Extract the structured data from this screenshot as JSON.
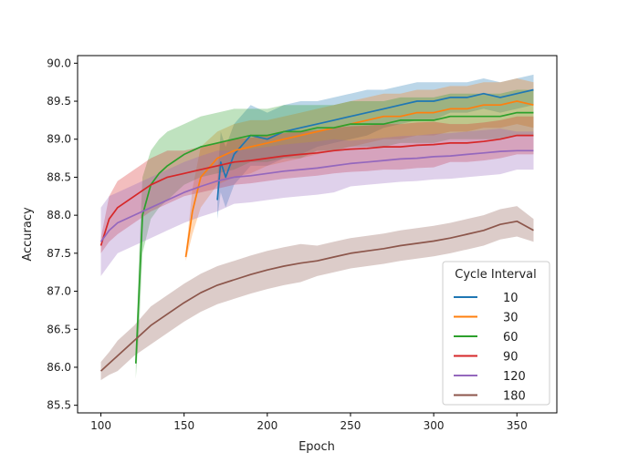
{
  "chart_data": {
    "type": "line",
    "title": "",
    "xlabel": "Epoch",
    "ylabel": "Accuracy",
    "xlim": [
      86,
      374
    ],
    "ylim": [
      85.4,
      90.1
    ],
    "xticks": [
      100,
      150,
      200,
      250,
      300,
      350
    ],
    "yticks": [
      85.5,
      86.0,
      86.5,
      87.0,
      87.5,
      88.0,
      88.5,
      89.0,
      89.5,
      90.0
    ],
    "grid": false,
    "legend": {
      "title": "Cycle Interval",
      "placement": "lower-right"
    },
    "series": [
      {
        "name": "10",
        "color": "#1f77b4",
        "x": [
          170,
          172,
          175,
          180,
          190,
          200,
          210,
          220,
          230,
          240,
          250,
          260,
          270,
          280,
          290,
          300,
          310,
          320,
          330,
          340,
          350,
          360
        ],
        "y": [
          88.2,
          88.7,
          88.5,
          88.8,
          89.05,
          89.0,
          89.1,
          89.15,
          89.2,
          89.25,
          89.3,
          89.35,
          89.4,
          89.45,
          89.5,
          89.5,
          89.55,
          89.55,
          89.6,
          89.55,
          89.6,
          89.65
        ],
        "band": [
          0.25,
          0.4,
          0.4,
          0.4,
          0.4,
          0.35,
          0.35,
          0.35,
          0.3,
          0.3,
          0.3,
          0.3,
          0.25,
          0.25,
          0.25,
          0.25,
          0.2,
          0.2,
          0.2,
          0.2,
          0.2,
          0.2
        ]
      },
      {
        "name": "30",
        "color": "#ff7f0e",
        "x": [
          151,
          155,
          160,
          170,
          180,
          190,
          200,
          210,
          220,
          230,
          240,
          250,
          260,
          270,
          280,
          290,
          300,
          310,
          320,
          330,
          340,
          350,
          360
        ],
        "y": [
          87.45,
          88.05,
          88.5,
          88.75,
          88.85,
          88.9,
          88.95,
          89.0,
          89.05,
          89.1,
          89.15,
          89.2,
          89.25,
          89.3,
          89.3,
          89.35,
          89.35,
          89.4,
          89.4,
          89.45,
          89.45,
          89.5,
          89.45
        ],
        "band": [
          0.05,
          0.3,
          0.4,
          0.35,
          0.35,
          0.35,
          0.3,
          0.3,
          0.3,
          0.3,
          0.3,
          0.3,
          0.3,
          0.3,
          0.3,
          0.3,
          0.3,
          0.3,
          0.3,
          0.3,
          0.3,
          0.3,
          0.3
        ]
      },
      {
        "name": "60",
        "color": "#2ca02c",
        "x": [
          121,
          123,
          125,
          130,
          135,
          140,
          150,
          160,
          170,
          180,
          190,
          200,
          210,
          220,
          230,
          240,
          250,
          260,
          270,
          280,
          290,
          300,
          310,
          320,
          330,
          340,
          350,
          360
        ],
        "y": [
          86.05,
          87.0,
          88.0,
          88.4,
          88.55,
          88.65,
          88.8,
          88.9,
          88.95,
          89.0,
          89.05,
          89.05,
          89.1,
          89.1,
          89.15,
          89.15,
          89.2,
          89.2,
          89.2,
          89.25,
          89.25,
          89.25,
          89.3,
          89.3,
          89.3,
          89.3,
          89.35,
          89.35
        ],
        "band": [
          0.2,
          0.5,
          0.5,
          0.45,
          0.45,
          0.45,
          0.4,
          0.4,
          0.4,
          0.4,
          0.35,
          0.35,
          0.35,
          0.35,
          0.3,
          0.3,
          0.3,
          0.3,
          0.3,
          0.3,
          0.3,
          0.3,
          0.3,
          0.3,
          0.3,
          0.3,
          0.3,
          0.3
        ]
      },
      {
        "name": "90",
        "color": "#d62728",
        "x": [
          100,
          105,
          110,
          120,
          130,
          140,
          150,
          160,
          170,
          180,
          190,
          200,
          210,
          220,
          230,
          240,
          250,
          260,
          270,
          280,
          290,
          300,
          310,
          320,
          330,
          340,
          350,
          360
        ],
        "y": [
          87.6,
          87.95,
          88.1,
          88.25,
          88.4,
          88.5,
          88.55,
          88.6,
          88.65,
          88.7,
          88.72,
          88.75,
          88.78,
          88.8,
          88.82,
          88.85,
          88.87,
          88.88,
          88.9,
          88.9,
          88.92,
          88.93,
          88.95,
          88.95,
          88.97,
          89.0,
          89.05,
          89.05
        ],
        "band": [
          0.1,
          0.3,
          0.35,
          0.35,
          0.35,
          0.35,
          0.3,
          0.3,
          0.3,
          0.3,
          0.3,
          0.3,
          0.3,
          0.3,
          0.3,
          0.3,
          0.3,
          0.3,
          0.3,
          0.3,
          0.3,
          0.3,
          0.25,
          0.25,
          0.25,
          0.25,
          0.25,
          0.25
        ]
      },
      {
        "name": "120",
        "color": "#9467bd",
        "x": [
          100,
          105,
          110,
          120,
          130,
          140,
          150,
          160,
          170,
          180,
          190,
          200,
          210,
          220,
          230,
          240,
          250,
          260,
          270,
          280,
          290,
          300,
          310,
          320,
          330,
          340,
          350,
          360
        ],
        "y": [
          87.65,
          87.8,
          87.9,
          88.0,
          88.1,
          88.2,
          88.3,
          88.38,
          88.45,
          88.5,
          88.52,
          88.55,
          88.58,
          88.6,
          88.62,
          88.65,
          88.68,
          88.7,
          88.72,
          88.74,
          88.75,
          88.77,
          88.78,
          88.8,
          88.82,
          88.84,
          88.85,
          88.85
        ],
        "band": [
          0.45,
          0.45,
          0.4,
          0.4,
          0.4,
          0.4,
          0.4,
          0.4,
          0.4,
          0.35,
          0.35,
          0.35,
          0.35,
          0.35,
          0.35,
          0.35,
          0.3,
          0.3,
          0.3,
          0.3,
          0.3,
          0.3,
          0.3,
          0.3,
          0.3,
          0.3,
          0.25,
          0.25
        ]
      },
      {
        "name": "180",
        "color": "#8c564b",
        "x": [
          100,
          105,
          110,
          120,
          130,
          140,
          150,
          160,
          170,
          180,
          190,
          200,
          210,
          220,
          230,
          240,
          250,
          260,
          270,
          280,
          290,
          300,
          310,
          320,
          330,
          340,
          350,
          360
        ],
        "y": [
          85.95,
          86.05,
          86.15,
          86.35,
          86.55,
          86.7,
          86.85,
          86.98,
          87.08,
          87.15,
          87.22,
          87.28,
          87.33,
          87.37,
          87.4,
          87.45,
          87.5,
          87.53,
          87.56,
          87.6,
          87.63,
          87.66,
          87.7,
          87.75,
          87.8,
          87.88,
          87.92,
          87.8
        ],
        "band": [
          0.12,
          0.15,
          0.2,
          0.2,
          0.25,
          0.25,
          0.25,
          0.25,
          0.25,
          0.25,
          0.25,
          0.25,
          0.25,
          0.25,
          0.2,
          0.2,
          0.2,
          0.2,
          0.2,
          0.2,
          0.2,
          0.2,
          0.2,
          0.2,
          0.2,
          0.2,
          0.2,
          0.15
        ]
      }
    ]
  }
}
